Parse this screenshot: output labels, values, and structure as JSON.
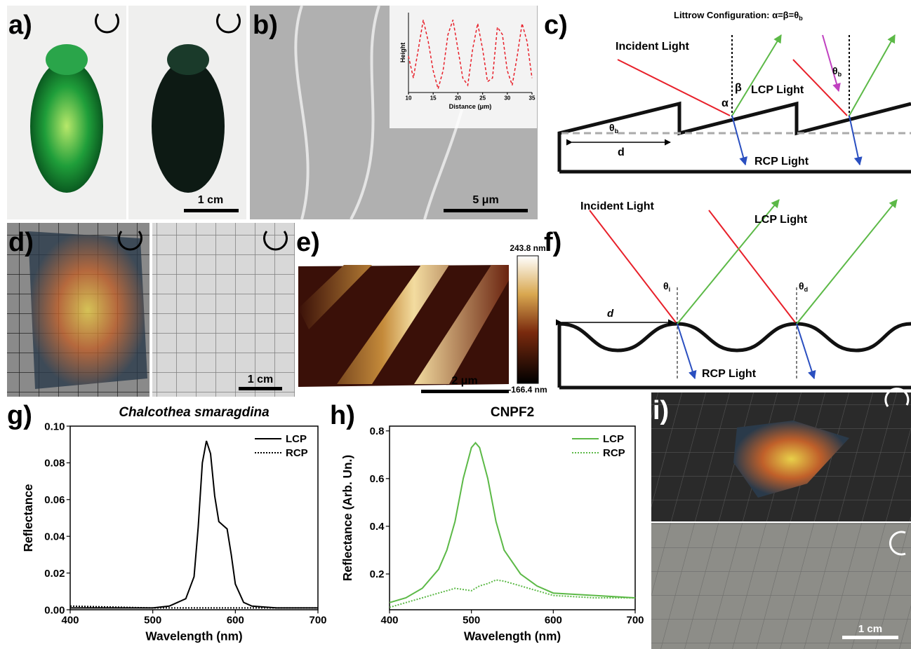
{
  "panel_labels": [
    "a)",
    "b)",
    "c)",
    "d)",
    "e)",
    "f)",
    "g)",
    "h)",
    "i)"
  ],
  "scale_bars": {
    "a": "1 cm",
    "b": "5 μm",
    "d": "1 cm",
    "e": "2 μm",
    "i": "1 cm"
  },
  "colorbar": {
    "max": "243.8 nm",
    "min": "-166.4 nm"
  },
  "diagram_c": {
    "title": "Littrow Configuration: α=β=θ",
    "title_sub": "b",
    "incident": "Incident Light",
    "lcp": "LCP Light",
    "rcp": "RCP Light",
    "d": "d",
    "theta": "θ",
    "theta_sub": "b",
    "alpha": "α",
    "beta": "β"
  },
  "diagram_f": {
    "incident": "Incident Light",
    "lcp": "LCP Light",
    "rcp": "RCP Light",
    "d": "d",
    "theta_i": "θ",
    "sub_i": "i",
    "theta_d": "θ",
    "sub_d": "d"
  },
  "chart_data": [
    {
      "type": "line",
      "x_label": "Distance (μm)",
      "y_label": "Height",
      "x": [
        10,
        11,
        12,
        13,
        14,
        15,
        16,
        17,
        18,
        19,
        20,
        21,
        22,
        23,
        24,
        25,
        26,
        27,
        28,
        29,
        30,
        31,
        32,
        33,
        34,
        35
      ],
      "series": [
        {
          "color": "#e8202a",
          "style": "dashed",
          "values": [
            0.5,
            0.2,
            0.6,
            1.0,
            0.7,
            0.3,
            0.05,
            0.3,
            0.8,
            1.0,
            0.6,
            0.2,
            0.1,
            0.6,
            0.95,
            0.6,
            0.15,
            0.2,
            0.9,
            0.8,
            0.3,
            0.1,
            0.5,
            0.95,
            0.7,
            0.2
          ]
        }
      ],
      "xlim": [
        10,
        35
      ],
      "xticks": [
        10,
        15,
        20,
        25,
        30,
        35
      ],
      "ylim": [
        0,
        1.1
      ]
    },
    {
      "type": "line",
      "title": "Chalcothea smaragdina",
      "x_label": "Wavelength (nm)",
      "y_label": "Reflectance",
      "x": [
        400,
        450,
        500,
        520,
        540,
        550,
        555,
        560,
        565,
        570,
        575,
        580,
        585,
        590,
        595,
        600,
        610,
        620,
        650,
        700
      ],
      "series": [
        {
          "name": "LCP",
          "color": "#000000",
          "style": "solid",
          "values": [
            0.001,
            0.001,
            0.001,
            0.002,
            0.006,
            0.018,
            0.045,
            0.08,
            0.092,
            0.085,
            0.062,
            0.048,
            0.046,
            0.044,
            0.03,
            0.014,
            0.004,
            0.002,
            0.001,
            0.001
          ]
        },
        {
          "name": "RCP",
          "color": "#000000",
          "style": "dotted",
          "values": [
            0.002,
            0.0015,
            0.001,
            0.001,
            0.001,
            0.001,
            0.001,
            0.001,
            0.001,
            0.001,
            0.001,
            0.001,
            0.001,
            0.001,
            0.001,
            0.001,
            0.001,
            0.001,
            0.001,
            0.001
          ]
        }
      ],
      "xlim": [
        400,
        700
      ],
      "xticks": [
        400,
        500,
        600,
        700
      ],
      "ylim": [
        0,
        0.1
      ],
      "yticks": [
        {
          "value": 0,
          "label": "0.00"
        },
        {
          "value": 0.02,
          "label": "0.02"
        },
        {
          "value": 0.04,
          "label": "0.04"
        },
        {
          "value": 0.06,
          "label": "0.06"
        },
        {
          "value": 0.08,
          "label": "0.08"
        },
        {
          "value": 0.1,
          "label": "0.10"
        }
      ],
      "legend": "upper right"
    },
    {
      "type": "line",
      "title": "CNPF2",
      "x_label": "Wavelength (nm)",
      "y_label": "Reflectance (Arb. Un.)",
      "x": [
        400,
        420,
        440,
        460,
        470,
        480,
        490,
        500,
        505,
        510,
        520,
        530,
        540,
        560,
        580,
        600,
        650,
        700
      ],
      "series": [
        {
          "name": "LCP",
          "color": "#5cb947",
          "style": "solid",
          "values": [
            0.08,
            0.1,
            0.14,
            0.22,
            0.3,
            0.42,
            0.6,
            0.73,
            0.75,
            0.73,
            0.6,
            0.42,
            0.3,
            0.2,
            0.15,
            0.12,
            0.11,
            0.1
          ]
        },
        {
          "name": "RCP",
          "color": "#5cb947",
          "style": "dotted",
          "values": [
            0.06,
            0.08,
            0.1,
            0.12,
            0.13,
            0.14,
            0.135,
            0.13,
            0.14,
            0.15,
            0.16,
            0.175,
            0.17,
            0.15,
            0.13,
            0.11,
            0.1,
            0.1
          ]
        }
      ],
      "xlim": [
        400,
        700
      ],
      "xticks": [
        400,
        500,
        600,
        700
      ],
      "ylim": [
        0.05,
        0.82
      ],
      "yticks": [
        0.2,
        0.4,
        0.6,
        0.8
      ],
      "legend": "upper right"
    }
  ]
}
